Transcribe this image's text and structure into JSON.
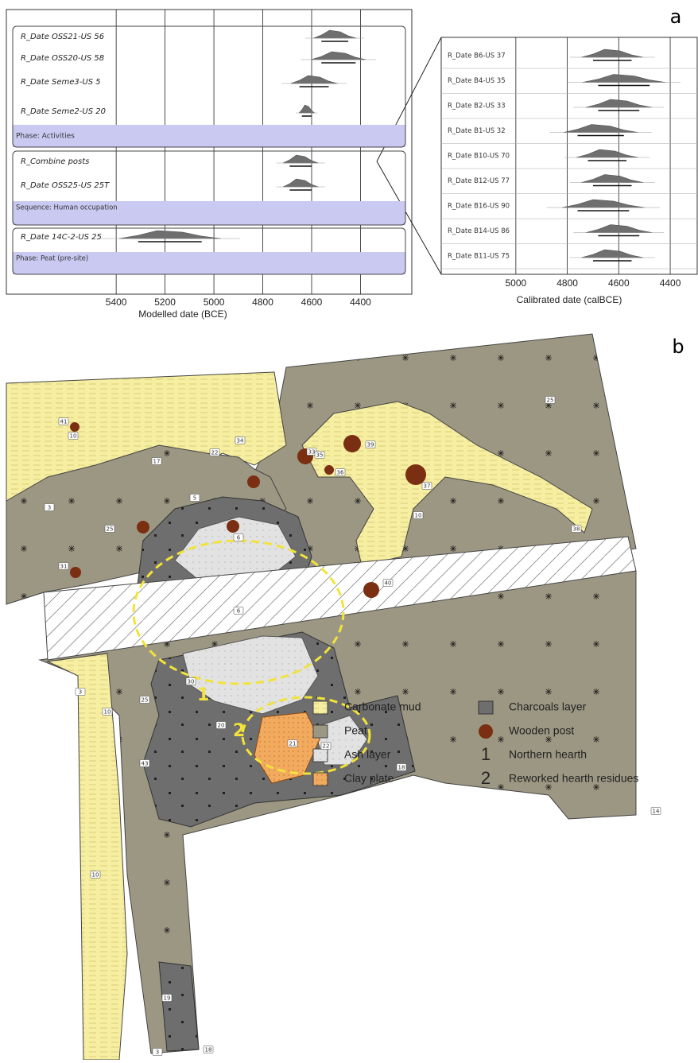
{
  "panel_a": {
    "label": "a",
    "left": {
      "axis_label": "Modelled date (BCE)",
      "xlim": [
        5420,
        4190
      ],
      "xticks": [
        5400,
        5200,
        5000,
        4800,
        4600,
        4400
      ],
      "groups": [
        {
          "rows": [
            {
              "name": "R_Date OSS21-US 56",
              "range": [
                4560,
                4450
              ]
            },
            {
              "name": "R_Date OSS20-US 58",
              "range": [
                4560,
                4420
              ]
            },
            {
              "name": "R_Date Seme3-US 5",
              "range": [
                4650,
                4530
              ]
            },
            {
              "name": "R_Date Seme2-US 20",
              "range": [
                4640,
                4600
              ]
            }
          ],
          "band": "Phase: Activities"
        },
        {
          "rows": [
            {
              "name": "R_Combine posts",
              "range": [
                4690,
                4600
              ]
            },
            {
              "name": "R_Date OSS25-US 25T",
              "range": [
                4690,
                4600
              ]
            }
          ],
          "band": "Sequence: Human occupation"
        },
        {
          "rows": [
            {
              "name": "R_Date 14C-2-US 25",
              "range": [
                5310,
                5050
              ]
            }
          ],
          "band": "Phase: Peat (pre-site)"
        }
      ]
    },
    "right": {
      "axis_label": "Calibrated date (calBCE)",
      "xlim": [
        5290,
        4292
      ],
      "xticks": [
        5000,
        4800,
        4600,
        4400
      ],
      "rows": [
        {
          "name": "R_Date B6-US 37",
          "range": [
            4700,
            4550
          ]
        },
        {
          "name": "R_Date B4-US 35",
          "range": [
            4680,
            4480
          ]
        },
        {
          "name": "R_Date B2-US 33",
          "range": [
            4680,
            4520
          ]
        },
        {
          "name": "R_Date B1-US 32",
          "range": [
            4760,
            4580
          ]
        },
        {
          "name": "R_Date B10-US 70",
          "range": [
            4720,
            4570
          ]
        },
        {
          "name": "R_Date B12-US 77",
          "range": [
            4700,
            4550
          ]
        },
        {
          "name": "R_Date B16-US 90",
          "range": [
            4760,
            4560
          ]
        },
        {
          "name": "R_Date B14-US 86",
          "range": [
            4680,
            4520
          ]
        },
        {
          "name": "R_Date B11-US 75",
          "range": [
            4700,
            4550
          ]
        }
      ]
    }
  },
  "panel_b": {
    "label": "b",
    "hearth_markers": [
      "1",
      "2"
    ],
    "map_labels": [
      "41",
      "10",
      "17",
      "3",
      "25",
      "22",
      "34",
      "5",
      "31",
      "33",
      "35",
      "36",
      "39",
      "37",
      "10",
      "25",
      "38",
      "40",
      "6",
      "6",
      "3",
      "10",
      "25",
      "30",
      "20",
      "43",
      "21",
      "22",
      "18",
      "10",
      "19",
      "3",
      "18",
      "14"
    ],
    "legend": [
      {
        "symbol": null,
        "label": "Carbonate mud"
      },
      {
        "symbol": null,
        "label": "Peat"
      },
      {
        "symbol": null,
        "label": "Ash layer"
      },
      {
        "symbol": null,
        "label": "Clay plate"
      },
      {
        "symbol": null,
        "label": "Charcoals layer"
      },
      {
        "symbol": null,
        "label": "Wooden post"
      },
      {
        "symbol": "1",
        "label": "Northern hearth"
      },
      {
        "symbol": "2",
        "label": "Reworked hearth residues"
      }
    ]
  }
}
